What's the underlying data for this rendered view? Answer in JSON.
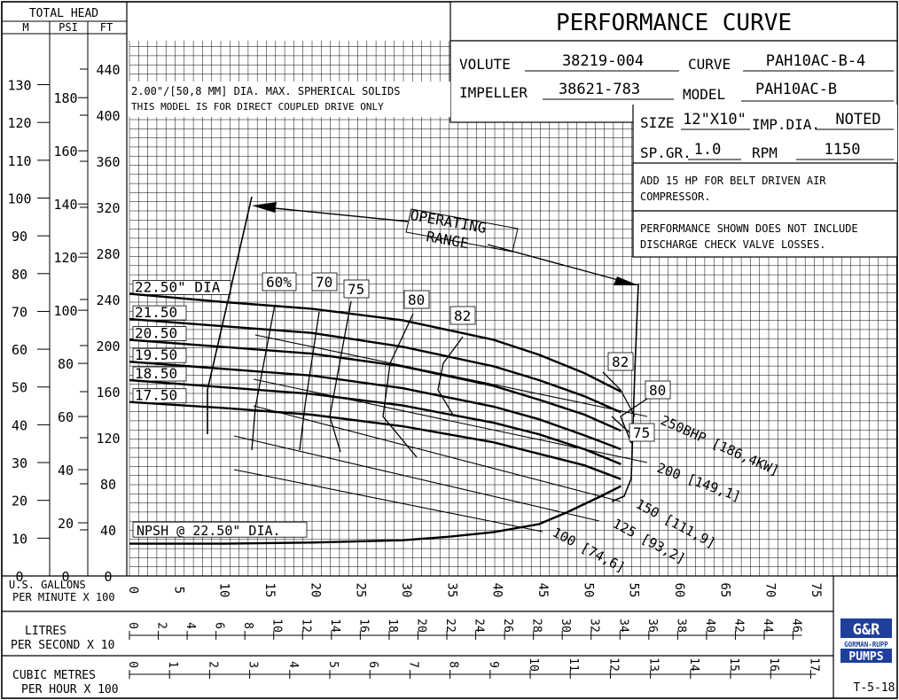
{
  "title": "PERFORMANCE CURVE",
  "header": {
    "total_head": "TOTAL HEAD",
    "unit_m": "M",
    "unit_psi": "PSI",
    "unit_ft": "FT"
  },
  "spec": {
    "volute_label": "VOLUTE",
    "volute_value": "38219-004",
    "curve_label": "CURVE",
    "curve_value": "PAH10AC-B-4",
    "impeller_label": "IMPELLER",
    "impeller_value": "38621-783",
    "model_label": "MODEL",
    "model_value": "PAH10AC-B",
    "size_label": "SIZE",
    "size_value": "12\"X10\"",
    "impdia_label": "IMP.DIA.",
    "impdia_value": "NOTED",
    "spgr_label": "SP.GR.",
    "spgr_value": "1.0",
    "rpm_label": "RPM",
    "rpm_value": "1150"
  },
  "notes": {
    "solids": "2.00\"/[50,8 MM] DIA. MAX. SPHERICAL SOLIDS",
    "coupled": "THIS MODEL IS FOR DIRECT COUPLED DRIVE ONLY",
    "air_line1": "ADD 15 HP FOR BELT DRIVEN AIR",
    "air_line2": "COMPRESSOR.",
    "perf_line1": "PERFORMANCE SHOWN DOES NOT INCLUDE",
    "perf_line2": "DISCHARGE CHECK VALVE LOSSES."
  },
  "operating_range": {
    "line1": "OPERATING",
    "line2": "RANGE"
  },
  "axes": {
    "gpm_label1": "U.S. GALLONS",
    "gpm_label2": "PER MINUTE  X 100",
    "lps_label1": "LITRES",
    "lps_label2": "PER SECOND  X 10",
    "m3h_label1": "CUBIC METRES",
    "m3h_label2": "PER HOUR  X 100"
  },
  "logo": {
    "line1": "G&R",
    "line2": "GORMAN-RUPP",
    "line3": "PUMPS"
  },
  "drawing_number": "T-5-18",
  "chart_data": {
    "type": "line",
    "title": "PERFORMANCE CURVE",
    "x_unit": "U.S. GALLONS PER MINUTE X 100",
    "y_unit": "FT",
    "xlim": [
      0,
      78
    ],
    "ylim": [
      0,
      460
    ],
    "grid": true,
    "ft_ticks": [
      0,
      40,
      80,
      120,
      160,
      200,
      240,
      280,
      320,
      360,
      400,
      440
    ],
    "m_ticks": [
      0,
      10,
      20,
      30,
      40,
      50,
      60,
      70,
      80,
      90,
      100,
      110,
      120,
      130
    ],
    "psi_ticks": [
      0,
      20,
      40,
      60,
      80,
      100,
      120,
      140,
      160,
      180
    ],
    "gpm_ticks": [
      0,
      5,
      10,
      15,
      20,
      25,
      30,
      35,
      40,
      45,
      50,
      55,
      60,
      65,
      70,
      75
    ],
    "lps_ticks": [
      0,
      2,
      4,
      6,
      8,
      10,
      12,
      14,
      16,
      18,
      20,
      22,
      24,
      26,
      28,
      30,
      32,
      34,
      36,
      38,
      40,
      42,
      44,
      46
    ],
    "m3h_ticks": [
      0,
      1,
      2,
      3,
      4,
      5,
      6,
      7,
      8,
      9,
      10,
      11,
      12,
      13,
      14,
      15,
      16,
      17
    ],
    "head_curves": [
      {
        "name": "22.50\" DIA",
        "points": [
          [
            0,
            245
          ],
          [
            10,
            238
          ],
          [
            20,
            232
          ],
          [
            30,
            222
          ],
          [
            40,
            205
          ],
          [
            45,
            192
          ],
          [
            50,
            176
          ],
          [
            54,
            160
          ]
        ]
      },
      {
        "name": "21.50",
        "points": [
          [
            0,
            223
          ],
          [
            10,
            217
          ],
          [
            20,
            211
          ],
          [
            30,
            199
          ],
          [
            40,
            182
          ],
          [
            45,
            170
          ],
          [
            50,
            156
          ],
          [
            54,
            142
          ]
        ]
      },
      {
        "name": "20.50",
        "points": [
          [
            0,
            205
          ],
          [
            10,
            199
          ],
          [
            20,
            193
          ],
          [
            30,
            182
          ],
          [
            40,
            165
          ],
          [
            45,
            153
          ],
          [
            50,
            140
          ],
          [
            54,
            126
          ]
        ]
      },
      {
        "name": "19.50",
        "points": [
          [
            0,
            186
          ],
          [
            10,
            180
          ],
          [
            20,
            174
          ],
          [
            30,
            163
          ],
          [
            40,
            147
          ],
          [
            45,
            136
          ],
          [
            50,
            122
          ],
          [
            54,
            110
          ]
        ]
      },
      {
        "name": "18.50",
        "points": [
          [
            0,
            170
          ],
          [
            10,
            164
          ],
          [
            20,
            158
          ],
          [
            30,
            148
          ],
          [
            40,
            133
          ],
          [
            45,
            123
          ],
          [
            50,
            110
          ],
          [
            54,
            97
          ]
        ]
      },
      {
        "name": "17.50",
        "points": [
          [
            0,
            151
          ],
          [
            10,
            146
          ],
          [
            20,
            140
          ],
          [
            30,
            130
          ],
          [
            40,
            116
          ],
          [
            45,
            106
          ],
          [
            50,
            96
          ],
          [
            54,
            84
          ]
        ]
      }
    ],
    "efficiency_labels": [
      "60%",
      "70",
      "75",
      "80",
      "82",
      "82",
      "80",
      "75"
    ],
    "bhp_lines": [
      "250BHP [186,4KW]",
      "200 [149,1]",
      "150 [111,9]",
      "125 [93,2]",
      "100 [74,6]"
    ],
    "npsh": {
      "name": "NPSH @ 22.50\" DIA.",
      "points": [
        [
          0,
          28
        ],
        [
          10,
          28
        ],
        [
          20,
          29
        ],
        [
          30,
          31
        ],
        [
          35,
          34
        ],
        [
          40,
          38
        ],
        [
          45,
          45
        ],
        [
          48,
          55
        ],
        [
          52,
          70
        ],
        [
          54,
          78
        ]
      ]
    }
  }
}
